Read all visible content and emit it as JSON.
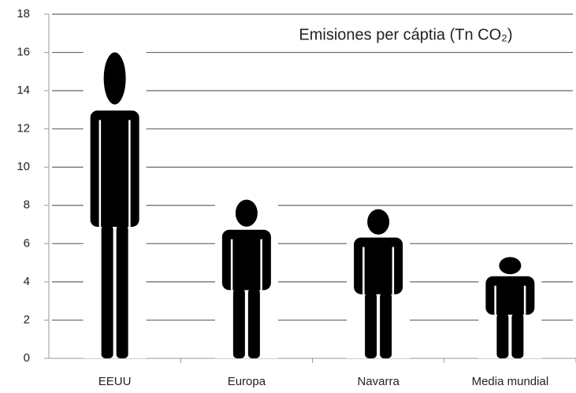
{
  "chart_data": {
    "type": "pictograph",
    "title": "Emisiones per cáptia (Tn CO₂)",
    "categories": [
      "EEUU",
      "Europa",
      "Navarra",
      "Media mundial"
    ],
    "values": [
      16,
      8.3,
      7.8,
      5.3
    ],
    "color": "#000000",
    "ylim": [
      0,
      18
    ],
    "yticks": [
      0,
      2,
      4,
      6,
      8,
      10,
      12,
      14,
      16,
      18
    ],
    "grid": true
  }
}
